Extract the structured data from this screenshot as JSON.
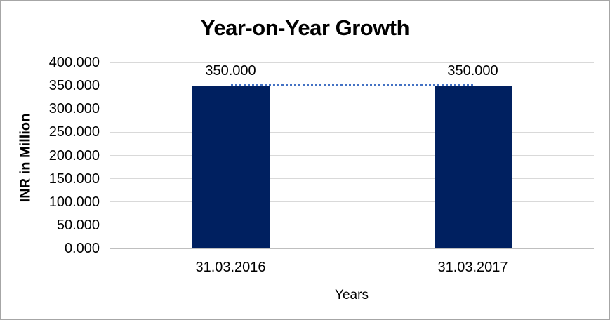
{
  "chart_data": {
    "type": "bar",
    "title": "Year-on-Year Growth",
    "xlabel": "Years",
    "ylabel": "INR in Million",
    "categories": [
      "31.03.2016",
      "31.03.2017"
    ],
    "values": [
      350,
      350
    ],
    "data_labels": [
      "350.000",
      "350.000"
    ],
    "overlay_line": {
      "type": "line",
      "values": [
        350,
        350
      ],
      "style": "dotted",
      "color": "#4472c4"
    },
    "ylim": [
      0,
      400
    ],
    "ytick_values": [
      400,
      350,
      300,
      250,
      200,
      150,
      100,
      50,
      0
    ],
    "ytick_labels": [
      "400.000",
      "350.000",
      "300.000",
      "250.000",
      "200.000",
      "150.000",
      "100.000",
      "50.000",
      "0.000"
    ],
    "grid": true,
    "legend_position": "none",
    "colors": {
      "bar": "#002060",
      "gridline": "#d9d9d9",
      "axis_line": "#bfbfbf",
      "text": "#000000",
      "background": "#ffffff",
      "chart_border": "#a6a6a6"
    }
  }
}
